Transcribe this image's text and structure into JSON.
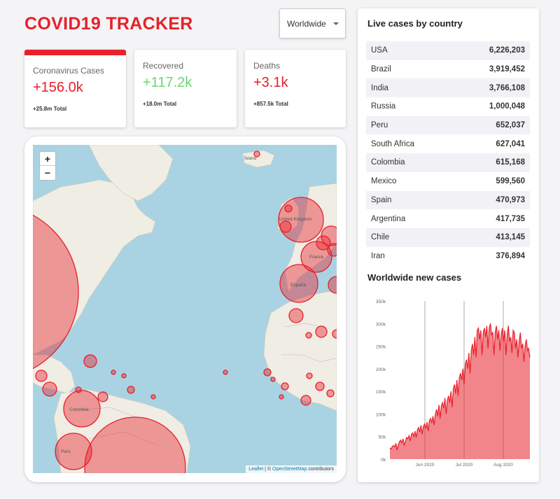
{
  "app": {
    "title": "COVID19 TRACKER"
  },
  "country_select": {
    "selected": "Worldwide"
  },
  "info_boxes": [
    {
      "label": "Coronavirus Cases",
      "value": "+156.0k",
      "total": "+25.8m Total"
    },
    {
      "label": "Recovered",
      "value": "+117.2k",
      "total": "+18.0m Total"
    },
    {
      "label": "Deaths",
      "value": "+3.1k",
      "total": "+857.5k Total"
    }
  ],
  "map": {
    "zoom_in": "+",
    "zoom_out": "−",
    "place_labels": [
      "Ísland",
      "United Kingdom",
      "France",
      "España",
      "Colombia",
      "Perú"
    ],
    "attribution": {
      "leaflet": "Leaflet",
      "separator": " | © ",
      "osm": "OpenStreetMap",
      "suffix": " contributors"
    }
  },
  "live_cases": {
    "title": "Live cases by country",
    "rows": [
      {
        "country": "USA",
        "cases": "6,226,203"
      },
      {
        "country": "Brazil",
        "cases": "3,919,452"
      },
      {
        "country": "India",
        "cases": "3,766,108"
      },
      {
        "country": "Russia",
        "cases": "1,000,048"
      },
      {
        "country": "Peru",
        "cases": "652,037"
      },
      {
        "country": "South Africa",
        "cases": "627,041"
      },
      {
        "country": "Colombia",
        "cases": "615,168"
      },
      {
        "country": "Mexico",
        "cases": "599,560"
      },
      {
        "country": "Spain",
        "cases": "470,973"
      },
      {
        "country": "Argentina",
        "cases": "417,735"
      },
      {
        "country": "Chile",
        "cases": "413,145"
      },
      {
        "country": "Iran",
        "cases": "376,894"
      }
    ]
  },
  "chart_title": "Worldwide new cases",
  "colors": {
    "accent": "#e8202a",
    "green": "#66d96f",
    "circle_fill": "#e8202a",
    "chart_fill": "#e8202a"
  },
  "chart_data": {
    "type": "area",
    "title": "Worldwide new cases",
    "xlabel": "",
    "ylabel": "",
    "ylim": [
      0,
      350000
    ],
    "y_ticks": [
      "0k",
      "50k",
      "100k",
      "150k",
      "200k",
      "250k",
      "300k",
      "350k"
    ],
    "x_ticks": [
      "Jun 2020",
      "Jul 2020",
      "Aug 2020"
    ],
    "grid": "vertical month lines",
    "values": [
      25000,
      22000,
      28000,
      30000,
      27000,
      35000,
      20000,
      32000,
      38000,
      42000,
      36000,
      45000,
      30000,
      40000,
      48000,
      45000,
      52000,
      40000,
      55000,
      58000,
      50000,
      62000,
      48000,
      65000,
      70000,
      60000,
      75000,
      55000,
      72000,
      78000,
      68000,
      82000,
      62000,
      85000,
      90000,
      80000,
      95000,
      75000,
      100000,
      110000,
      95000,
      120000,
      90000,
      118000,
      125000,
      112000,
      135000,
      100000,
      130000,
      140000,
      125000,
      150000,
      115000,
      155000,
      165000,
      145000,
      175000,
      140000,
      180000,
      190000,
      175000,
      200000,
      165000,
      210000,
      220000,
      200000,
      235000,
      190000,
      240000,
      255000,
      230000,
      270000,
      225000,
      285000,
      290000,
      265000,
      285000,
      230000,
      280000,
      290000,
      270000,
      295000,
      245000,
      290000,
      300000,
      275000,
      280000,
      230000,
      280000,
      295000,
      265000,
      285000,
      240000,
      275000,
      290000,
      260000,
      285000,
      230000,
      275000,
      295000,
      260000,
      270000,
      235000,
      285000,
      280000,
      245000,
      265000,
      225000,
      260000,
      280000,
      245000,
      255000,
      215000,
      250000,
      265000,
      240000,
      245000,
      225000
    ]
  }
}
